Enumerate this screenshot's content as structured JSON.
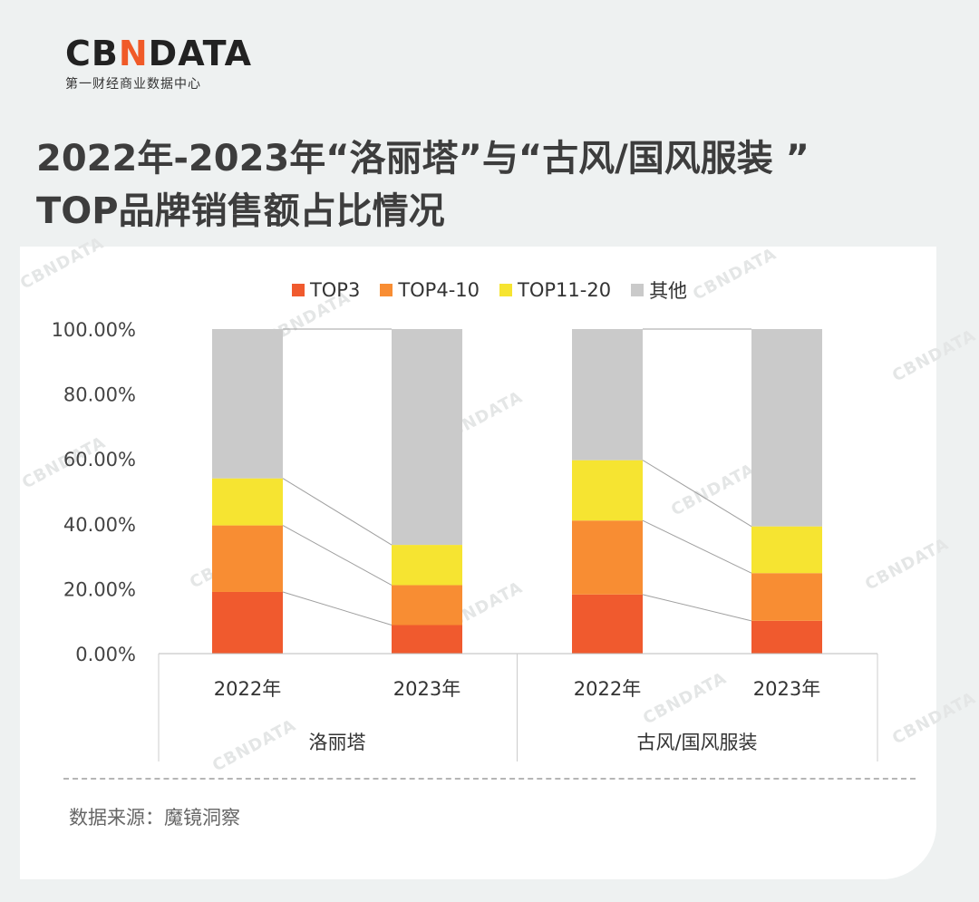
{
  "logo": {
    "main_left": "CB",
    "main_accent": "N",
    "main_right": "DATA",
    "sub": "第一财经商业数据中心"
  },
  "title": {
    "line1": "2022年-2023年“洛丽塔”与“古风/国风服装 ”",
    "line2": "TOP品牌销售额占比情况"
  },
  "watermark": "CBNDATA",
  "source": "数据来源：魔镜洞察",
  "colors": {
    "top3": "#f05a2e",
    "top4_10": "#f88d33",
    "top11_20": "#f6e431",
    "other": "#cacaca",
    "accent": "#f05a28"
  },
  "chart_data": {
    "type": "bar",
    "stacked": true,
    "categories": [
      "2022年",
      "2023年",
      "2022年",
      "2023年"
    ],
    "groups": [
      {
        "label": "洛丽塔",
        "categories": [
          "2022年",
          "2023年"
        ]
      },
      {
        "label": "古风/国风服装",
        "categories": [
          "2022年",
          "2023年"
        ]
      }
    ],
    "series": [
      {
        "name": "TOP3",
        "values": [
          19.0,
          8.8,
          18.2,
          10.1
        ]
      },
      {
        "name": "TOP4-10",
        "values": [
          20.5,
          12.3,
          22.8,
          14.7
        ]
      },
      {
        "name": "TOP11-20",
        "values": [
          14.5,
          12.4,
          18.6,
          14.4
        ]
      },
      {
        "name": "其他",
        "values": [
          46.0,
          66.5,
          40.4,
          60.8
        ]
      }
    ],
    "y_ticks": [
      "0.00%",
      "20.00%",
      "40.00%",
      "60.00%",
      "80.00%",
      "100.00%"
    ],
    "ylim": [
      0,
      100
    ],
    "legend_position": "top",
    "grid": false,
    "connector_lines": true
  }
}
